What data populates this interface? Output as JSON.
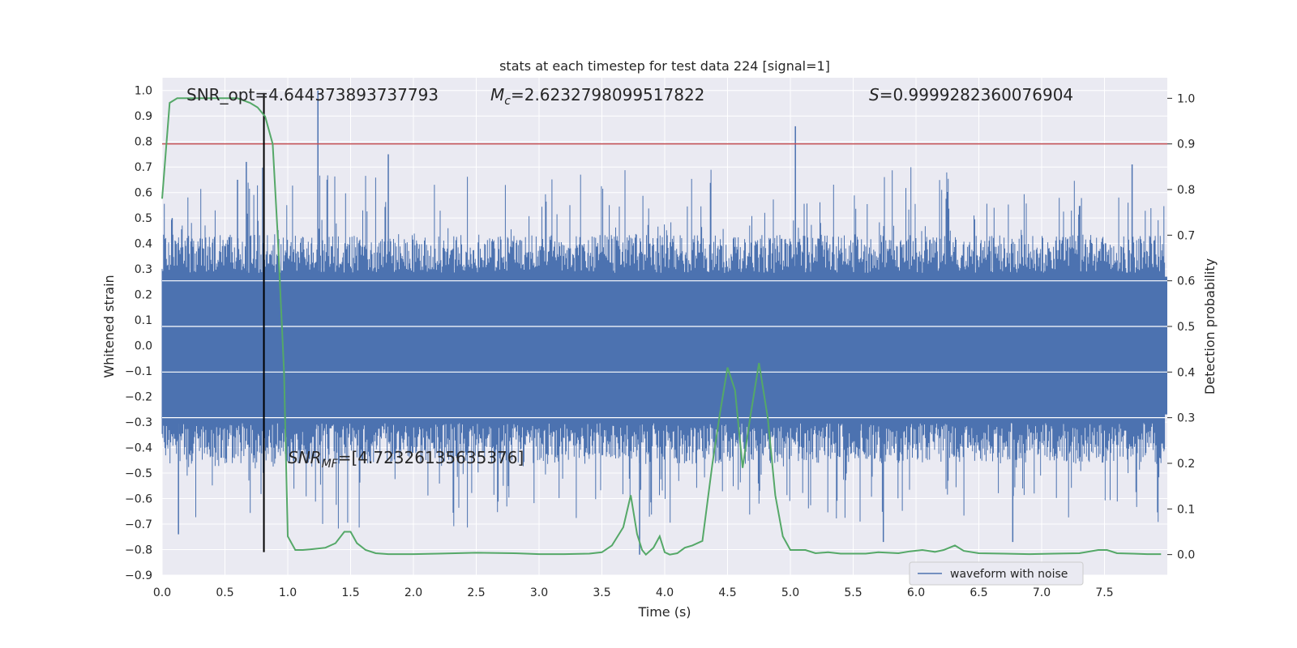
{
  "chart_data": {
    "type": "line",
    "title": "stats at each timestep for test data 224 [signal=1]",
    "xlabel": "Time (s)",
    "ylabel": "Whitened strain",
    "y2label": "Detection probability",
    "xlim": [
      0.0,
      8.0
    ],
    "ylim": [
      -0.9,
      1.05
    ],
    "y2lim": [
      -0.045,
      1.045
    ],
    "xticks": [
      "0.0",
      "0.5",
      "1.0",
      "1.5",
      "2.0",
      "2.5",
      "3.0",
      "3.5",
      "4.0",
      "4.5",
      "5.0",
      "5.5",
      "6.0",
      "6.5",
      "7.0",
      "7.5"
    ],
    "xtick_values": [
      0.0,
      0.5,
      1.0,
      1.5,
      2.0,
      2.5,
      3.0,
      3.5,
      4.0,
      4.5,
      5.0,
      5.5,
      6.0,
      6.5,
      7.0,
      7.5
    ],
    "yticks": [
      "1.0",
      "0.9",
      "0.8",
      "0.7",
      "0.6",
      "0.5",
      "0.4",
      "0.3",
      "0.2",
      "0.1",
      "0.0",
      "−0.1",
      "−0.2",
      "−0.3",
      "−0.4",
      "−0.5",
      "−0.6",
      "−0.7",
      "−0.8",
      "−0.9"
    ],
    "ytick_values": [
      1.0,
      0.9,
      0.8,
      0.7,
      0.6,
      0.5,
      0.4,
      0.3,
      0.2,
      0.1,
      0.0,
      -0.1,
      -0.2,
      -0.3,
      -0.4,
      -0.5,
      -0.6,
      -0.7,
      -0.8,
      -0.9
    ],
    "y2ticks": [
      "1.0",
      "0.9",
      "0.8",
      "0.7",
      "0.6",
      "0.5",
      "0.4",
      "0.3",
      "0.2",
      "0.1",
      "0.0"
    ],
    "y2tick_values": [
      1.0,
      0.9,
      0.8,
      0.7,
      0.6,
      0.5,
      0.4,
      0.3,
      0.2,
      0.1,
      0.0
    ],
    "grid": true,
    "legend_placement": "lower-right",
    "annotations": {
      "snr_opt_label": "SNR_opt=4.644373893737793",
      "mc_label_symbol": "M",
      "mc_label_subscript": "c",
      "mc_label_value": "=2.6232798099517822",
      "s_label_symbol": "S",
      "s_label_value": "=0.9999282360076904",
      "snr_mf_symbol": "SNR",
      "snr_mf_subscript": "MF",
      "snr_mf_value": "=[4.72326135635376]"
    },
    "series": [
      {
        "name": "waveform with noise",
        "color": "#4c72b0",
        "kind": "noise-envelope",
        "envelope_upper": [
          0.3,
          0.3
        ],
        "envelope_lower": [
          -0.32,
          -0.32
        ],
        "peak_spikes": [
          {
            "x": 0.08,
            "y": 0.5
          },
          {
            "x": 0.13,
            "y": -0.74
          },
          {
            "x": 0.6,
            "y": 0.65
          },
          {
            "x": 0.67,
            "y": 0.72
          },
          {
            "x": 1.24,
            "y": 1.0
          },
          {
            "x": 1.8,
            "y": 0.75
          },
          {
            "x": 3.8,
            "y": -0.82
          },
          {
            "x": 5.04,
            "y": 0.86
          },
          {
            "x": 5.74,
            "y": -0.77
          },
          {
            "x": 6.77,
            "y": -0.77
          },
          {
            "x": 7.72,
            "y": 0.71
          }
        ]
      },
      {
        "color": "#55a868",
        "axis": "right",
        "x": [
          0.0,
          0.06,
          0.12,
          0.25,
          0.5,
          0.6,
          0.7,
          0.76,
          0.82,
          0.88,
          0.92,
          0.97,
          1.0,
          1.06,
          1.12,
          1.2,
          1.3,
          1.38,
          1.45,
          1.5,
          1.55,
          1.62,
          1.7,
          1.8,
          2.0,
          2.2,
          2.5,
          2.8,
          3.0,
          3.2,
          3.4,
          3.5,
          3.58,
          3.67,
          3.73,
          3.78,
          3.82,
          3.85,
          3.91,
          3.96,
          4.0,
          4.04,
          4.1,
          4.16,
          4.22,
          4.3,
          4.38,
          4.44,
          4.5,
          4.56,
          4.62,
          4.68,
          4.75,
          4.82,
          4.88,
          4.94,
          5.0,
          5.12,
          5.2,
          5.3,
          5.4,
          5.6,
          5.7,
          5.86,
          5.95,
          6.05,
          6.15,
          6.22,
          6.31,
          6.38,
          6.5,
          6.7,
          6.9,
          7.1,
          7.3,
          7.45,
          7.52,
          7.6,
          7.72,
          7.84,
          7.95
        ],
        "y": [
          0.78,
          0.99,
          1.0,
          1.0,
          1.0,
          1.0,
          0.99,
          0.98,
          0.96,
          0.9,
          0.7,
          0.4,
          0.04,
          0.01,
          0.01,
          0.012,
          0.015,
          0.025,
          0.05,
          0.05,
          0.025,
          0.01,
          0.003,
          0.001,
          0.001,
          0.002,
          0.004,
          0.003,
          0.001,
          0.001,
          0.002,
          0.005,
          0.02,
          0.06,
          0.13,
          0.045,
          0.01,
          0.0,
          0.015,
          0.04,
          0.005,
          0.0,
          0.003,
          0.015,
          0.02,
          0.03,
          0.2,
          0.31,
          0.41,
          0.36,
          0.19,
          0.3,
          0.42,
          0.3,
          0.13,
          0.04,
          0.01,
          0.01,
          0.003,
          0.005,
          0.002,
          0.002,
          0.005,
          0.003,
          0.007,
          0.01,
          0.006,
          0.01,
          0.02,
          0.008,
          0.003,
          0.002,
          0.001,
          0.002,
          0.003,
          0.01,
          0.01,
          0.003,
          0.002,
          0.001,
          0.001
        ]
      },
      {
        "color": "#c44e52",
        "kind": "threshold",
        "axis": "right",
        "value": 0.9
      },
      {
        "color": "#000000",
        "kind": "vertical-marker",
        "x": 0.81,
        "y_range": [
          -0.81,
          0.99
        ]
      }
    ]
  }
}
